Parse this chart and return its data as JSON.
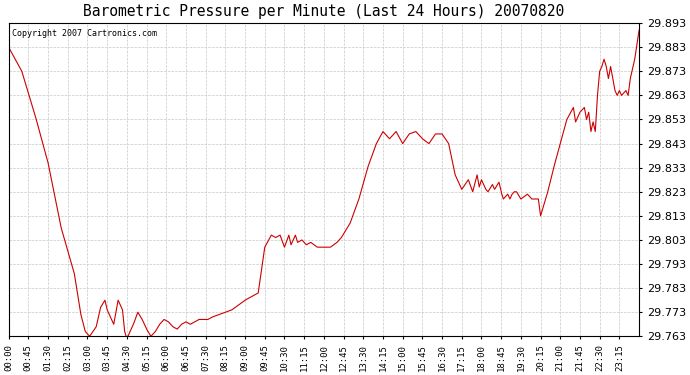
{
  "title": "Barometric Pressure per Minute (Last 24 Hours) 20070820",
  "copyright_text": "Copyright 2007 Cartronics.com",
  "line_color": "#cc0000",
  "background_color": "#ffffff",
  "grid_color": "#c8c8c8",
  "y_min": 29.763,
  "y_max": 29.893,
  "y_tick_step": 0.01,
  "x_ticks": [
    "00:00",
    "00:45",
    "01:30",
    "02:15",
    "03:00",
    "03:45",
    "04:30",
    "05:15",
    "06:00",
    "06:45",
    "07:30",
    "08:15",
    "09:00",
    "09:45",
    "10:30",
    "11:15",
    "12:00",
    "12:45",
    "13:30",
    "14:15",
    "15:00",
    "15:45",
    "16:30",
    "17:15",
    "18:00",
    "18:45",
    "19:30",
    "20:15",
    "21:00",
    "21:45",
    "22:30",
    "23:15"
  ],
  "keypoints": [
    [
      0,
      29.883
    ],
    [
      30,
      29.873
    ],
    [
      60,
      29.855
    ],
    [
      90,
      29.835
    ],
    [
      120,
      29.808
    ],
    [
      150,
      29.789
    ],
    [
      165,
      29.772
    ],
    [
      175,
      29.765
    ],
    [
      185,
      29.763
    ],
    [
      200,
      29.767
    ],
    [
      210,
      29.775
    ],
    [
      220,
      29.778
    ],
    [
      225,
      29.774
    ],
    [
      235,
      29.77
    ],
    [
      240,
      29.768
    ],
    [
      245,
      29.773
    ],
    [
      250,
      29.778
    ],
    [
      260,
      29.774
    ],
    [
      265,
      29.765
    ],
    [
      270,
      29.762
    ],
    [
      275,
      29.764
    ],
    [
      285,
      29.768
    ],
    [
      295,
      29.773
    ],
    [
      305,
      29.77
    ],
    [
      315,
      29.766
    ],
    [
      325,
      29.763
    ],
    [
      335,
      29.765
    ],
    [
      345,
      29.768
    ],
    [
      355,
      29.77
    ],
    [
      365,
      29.769
    ],
    [
      375,
      29.767
    ],
    [
      385,
      29.766
    ],
    [
      395,
      29.768
    ],
    [
      405,
      29.769
    ],
    [
      415,
      29.768
    ],
    [
      425,
      29.769
    ],
    [
      435,
      29.77
    ],
    [
      445,
      29.77
    ],
    [
      455,
      29.77
    ],
    [
      465,
      29.771
    ],
    [
      480,
      29.772
    ],
    [
      510,
      29.774
    ],
    [
      540,
      29.778
    ],
    [
      570,
      29.781
    ],
    [
      585,
      29.8
    ],
    [
      600,
      29.805
    ],
    [
      610,
      29.804
    ],
    [
      620,
      29.805
    ],
    [
      630,
      29.8
    ],
    [
      640,
      29.805
    ],
    [
      645,
      29.801
    ],
    [
      655,
      29.805
    ],
    [
      660,
      29.802
    ],
    [
      670,
      29.803
    ],
    [
      680,
      29.801
    ],
    [
      690,
      29.802
    ],
    [
      705,
      29.8
    ],
    [
      720,
      29.8
    ],
    [
      735,
      29.8
    ],
    [
      750,
      29.802
    ],
    [
      760,
      29.804
    ],
    [
      770,
      29.807
    ],
    [
      780,
      29.81
    ],
    [
      800,
      29.82
    ],
    [
      820,
      29.833
    ],
    [
      840,
      29.843
    ],
    [
      855,
      29.848
    ],
    [
      870,
      29.845
    ],
    [
      885,
      29.848
    ],
    [
      900,
      29.843
    ],
    [
      915,
      29.847
    ],
    [
      930,
      29.848
    ],
    [
      945,
      29.845
    ],
    [
      960,
      29.843
    ],
    [
      975,
      29.847
    ],
    [
      990,
      29.847
    ],
    [
      1005,
      29.843
    ],
    [
      1020,
      29.83
    ],
    [
      1035,
      29.824
    ],
    [
      1050,
      29.828
    ],
    [
      1060,
      29.823
    ],
    [
      1070,
      29.83
    ],
    [
      1075,
      29.825
    ],
    [
      1080,
      29.828
    ],
    [
      1090,
      29.824
    ],
    [
      1095,
      29.823
    ],
    [
      1105,
      29.826
    ],
    [
      1110,
      29.824
    ],
    [
      1120,
      29.827
    ],
    [
      1125,
      29.823
    ],
    [
      1130,
      29.82
    ],
    [
      1140,
      29.822
    ],
    [
      1145,
      29.82
    ],
    [
      1150,
      29.822
    ],
    [
      1155,
      29.823
    ],
    [
      1160,
      29.823
    ],
    [
      1170,
      29.82
    ],
    [
      1185,
      29.822
    ],
    [
      1190,
      29.821
    ],
    [
      1195,
      29.82
    ],
    [
      1200,
      29.82
    ],
    [
      1210,
      29.82
    ],
    [
      1215,
      29.813
    ],
    [
      1230,
      29.822
    ],
    [
      1245,
      29.833
    ],
    [
      1260,
      29.843
    ],
    [
      1275,
      29.853
    ],
    [
      1290,
      29.858
    ],
    [
      1295,
      29.852
    ],
    [
      1305,
      29.856
    ],
    [
      1315,
      29.858
    ],
    [
      1320,
      29.853
    ],
    [
      1325,
      29.856
    ],
    [
      1330,
      29.848
    ],
    [
      1335,
      29.852
    ],
    [
      1340,
      29.848
    ],
    [
      1345,
      29.863
    ],
    [
      1350,
      29.873
    ],
    [
      1355,
      29.875
    ],
    [
      1360,
      29.878
    ],
    [
      1365,
      29.875
    ],
    [
      1370,
      29.87
    ],
    [
      1375,
      29.875
    ],
    [
      1380,
      29.87
    ],
    [
      1385,
      29.865
    ],
    [
      1390,
      29.863
    ],
    [
      1395,
      29.865
    ],
    [
      1400,
      29.863
    ],
    [
      1410,
      29.865
    ],
    [
      1415,
      29.863
    ],
    [
      1420,
      29.87
    ],
    [
      1430,
      29.878
    ],
    [
      1440,
      29.89
    ]
  ]
}
